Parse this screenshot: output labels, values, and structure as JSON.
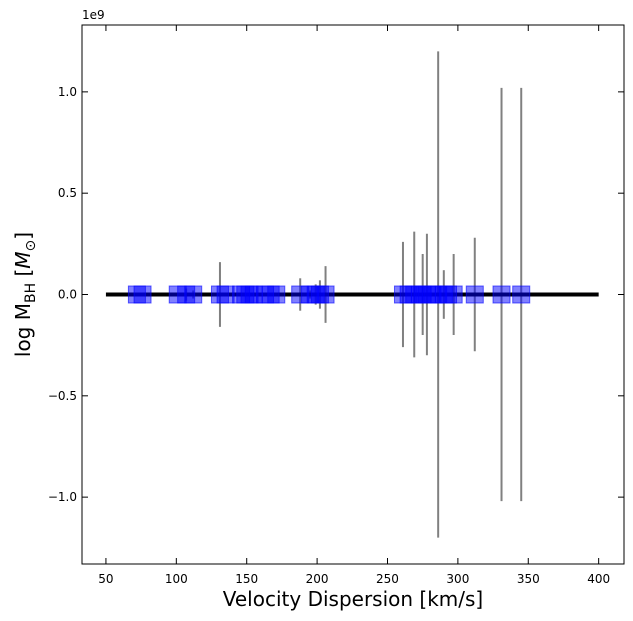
{
  "chart_data": {
    "type": "scatter",
    "xlabel": "Velocity Dispersion [km/s]",
    "ylabel_main": "log M",
    "ylabel_sub": "BH",
    "ylabel_unit_open": " [",
    "ylabel_unit_symbol": "M",
    "ylabel_unit_sub": "⊙",
    "ylabel_unit_close": "]",
    "y_offset_label": "1e9",
    "xlim": [
      33,
      418
    ],
    "ylim": [
      -1.33,
      1.33
    ],
    "x_ticks": [
      50,
      100,
      150,
      200,
      250,
      300,
      350,
      400
    ],
    "x_tick_labels": [
      "50",
      "100",
      "150",
      "200",
      "250",
      "300",
      "350",
      "400"
    ],
    "y_ticks": [
      -1.0,
      -0.5,
      0.0,
      0.5,
      1.0
    ],
    "y_tick_labels": [
      "−1.0",
      "−0.5",
      "0.0",
      "0.5",
      "1.0"
    ],
    "grid": false,
    "fit_line": {
      "x": [
        50,
        400
      ],
      "y": [
        0,
        0
      ],
      "color": "#000000"
    },
    "marker_color": "#0000ff",
    "errorbar_color": "#808080",
    "points": [
      {
        "x": 72,
        "y": 0,
        "yerr": 0
      },
      {
        "x": 76,
        "y": 0,
        "yerr": 0
      },
      {
        "x": 101,
        "y": 0,
        "yerr": 0
      },
      {
        "x": 107,
        "y": 0,
        "yerr": 0.03
      },
      {
        "x": 112,
        "y": 0,
        "yerr": 0.02
      },
      {
        "x": 131,
        "y": 0,
        "yerr": 0.16
      },
      {
        "x": 135,
        "y": 0,
        "yerr": 0
      },
      {
        "x": 146,
        "y": 0,
        "yerr": 0
      },
      {
        "x": 149,
        "y": 0,
        "yerr": 0
      },
      {
        "x": 152,
        "y": 0,
        "yerr": 0
      },
      {
        "x": 155,
        "y": 0,
        "yerr": 0
      },
      {
        "x": 163,
        "y": 0,
        "yerr": 0
      },
      {
        "x": 167,
        "y": 0,
        "yerr": 0
      },
      {
        "x": 171,
        "y": 0,
        "yerr": 0
      },
      {
        "x": 188,
        "y": 0,
        "yerr": 0.08
      },
      {
        "x": 195,
        "y": 0,
        "yerr": 0.02
      },
      {
        "x": 199,
        "y": 0,
        "yerr": 0.05
      },
      {
        "x": 202,
        "y": 0,
        "yerr": 0.07
      },
      {
        "x": 206,
        "y": 0,
        "yerr": 0.14
      },
      {
        "x": 261,
        "y": 0,
        "yerr": 0.26
      },
      {
        "x": 265,
        "y": 0,
        "yerr": 0
      },
      {
        "x": 269,
        "y": 0,
        "yerr": 0.31
      },
      {
        "x": 273,
        "y": 0,
        "yerr": 0
      },
      {
        "x": 275,
        "y": 0,
        "yerr": 0.2
      },
      {
        "x": 278,
        "y": 0,
        "yerr": 0.3
      },
      {
        "x": 282,
        "y": 0,
        "yerr": 0
      },
      {
        "x": 286,
        "y": 0,
        "yerr": 1.2
      },
      {
        "x": 290,
        "y": 0,
        "yerr": 0.12
      },
      {
        "x": 293,
        "y": 0,
        "yerr": 0
      },
      {
        "x": 297,
        "y": 0,
        "yerr": 0.2
      },
      {
        "x": 312,
        "y": 0,
        "yerr": 0.28
      },
      {
        "x": 331,
        "y": 0,
        "yerr": 1.02
      },
      {
        "x": 345,
        "y": 0,
        "yerr": 1.02
      }
    ]
  }
}
